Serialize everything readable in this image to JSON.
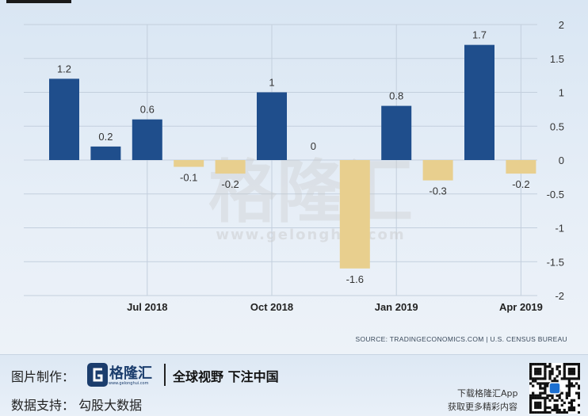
{
  "chart_data": {
    "type": "bar",
    "categories": [
      "",
      "",
      "Jul 2018",
      "",
      "",
      "Oct 2018",
      "",
      "",
      "Jan 2019",
      "",
      "",
      "Apr 2019"
    ],
    "values": [
      1.2,
      0.2,
      0.6,
      -0.1,
      -0.2,
      1,
      0,
      -1.6,
      0.8,
      -0.3,
      1.7,
      -0.2
    ],
    "data_labels": [
      "1.2",
      "0.2",
      "0.6",
      "-0.1",
      "-0.2",
      "1",
      "0",
      "-1.6",
      "0.8",
      "-0.3",
      "1.7",
      "-0.2"
    ],
    "xlabel": "",
    "ylabel": "",
    "ylim": [
      -2,
      2
    ],
    "y_ticks": [
      "2",
      "1.5",
      "1",
      "0.5",
      "0",
      "-0.5",
      "-1",
      "-1.5",
      "-2"
    ],
    "x_ticks": [
      "Jul 2018",
      "Oct 2018",
      "Jan 2019",
      "Apr 2019"
    ],
    "y_axis_side": "right",
    "grid": true,
    "colors": {
      "positive": "#1f4e8c",
      "negative": "#e8cf8e"
    },
    "source": "SOURCE: TRADINGECONOMICS.COM  |  U.S. CENSUS BUREAU"
  },
  "watermark": {
    "cn": "格隆汇",
    "url": "www.gelonghui.com"
  },
  "footer": {
    "credit_label": "图片制作：",
    "brand_name": "格隆汇",
    "brand_url": "www.gelonghui.com",
    "tagline": "全球视野 下注中国",
    "support_label": "数据支持：  勾股大数据",
    "app_line1": "下载格隆汇App",
    "app_line2": "获取更多精彩内容"
  }
}
